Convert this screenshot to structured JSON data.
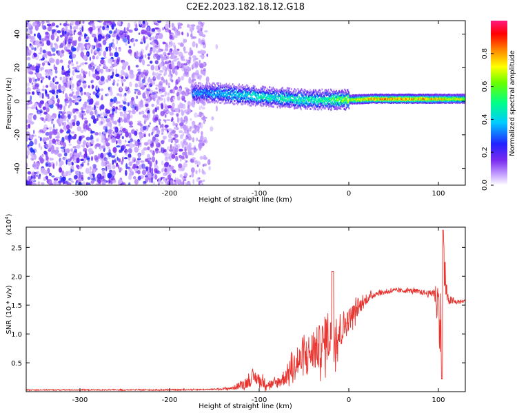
{
  "title": "C2E2.2023.182.18.12.G18",
  "colors": {
    "snr_line": "#e8332e",
    "scatter_purple": "#7b2cf0",
    "frame": "#000000"
  },
  "chart_data": [
    {
      "type": "heatmap",
      "name": "spectrogram",
      "xlabel": "Height of straight line (km)",
      "ylabel": "Frequency (Hz)",
      "xlim": [
        -360,
        130
      ],
      "ylim": [
        -50,
        48
      ],
      "x_ticks": [
        -300,
        -200,
        -100,
        0,
        100
      ],
      "y_ticks": [
        -40,
        -20,
        0,
        20,
        40
      ],
      "colorbar": {
        "label": "Normalized spectral amplitude",
        "range": [
          0.0,
          1.0
        ],
        "ticks": [
          0.0,
          0.2,
          0.4,
          0.6,
          0.8
        ],
        "tick_labels": [
          "0.0",
          "0.2",
          "0.4",
          "0.6",
          "0.8"
        ],
        "colormap": "rainbow"
      },
      "features": {
        "noise_region_x": [
          -360,
          -160
        ],
        "signal_track": {
          "x": [
            -175,
            -150,
            -125,
            -100,
            -75,
            -50,
            -25,
            0,
            25,
            50,
            75,
            100,
            130
          ],
          "y": [
            5,
            5,
            4,
            3,
            2,
            1,
            1,
            1,
            1.5,
            1.5,
            1.5,
            1.5,
            1.5
          ],
          "intensity": [
            0.35,
            0.4,
            0.45,
            0.5,
            0.5,
            0.5,
            0.55,
            0.7,
            0.85,
            0.9,
            0.85,
            0.8,
            0.7
          ]
        }
      }
    },
    {
      "type": "line",
      "name": "snr",
      "xlabel": "Height of straight line (km)",
      "ylabel": "SNR (10 * v/v)",
      "y_multiplier": "(x10",
      "y_multiplier_exp": "4",
      "y_multiplier_close": ")",
      "xlim": [
        -360,
        130
      ],
      "ylim": [
        0,
        2.85
      ],
      "x_ticks": [
        -300,
        -200,
        -100,
        0,
        100
      ],
      "y_ticks": [
        0.5,
        1.0,
        1.5,
        2.0,
        2.5
      ],
      "y_tick_labels": [
        "0.5",
        "1.0",
        "1.5",
        "2.0",
        "2.5"
      ],
      "series": [
        {
          "x": [
            -360,
            -300,
            -200,
            -150,
            -130,
            -115,
            -105,
            -95,
            -85,
            -75,
            -60,
            -45,
            -30,
            -20,
            -15,
            -10,
            0,
            10,
            20,
            30,
            50,
            70,
            90,
            95,
            100,
            103,
            106,
            110,
            120,
            130
          ],
          "y": [
            0.03,
            0.03,
            0.03,
            0.04,
            0.06,
            0.15,
            0.25,
            0.15,
            0.12,
            0.2,
            0.45,
            0.65,
            0.8,
            1.05,
            0.95,
            1.05,
            1.25,
            1.45,
            1.6,
            1.7,
            1.75,
            1.75,
            1.7,
            1.72,
            1.55,
            1.0,
            2.2,
            1.6,
            1.55,
            1.57
          ],
          "noise": [
            0.01,
            0.01,
            0.01,
            0.01,
            0.03,
            0.1,
            0.12,
            0.1,
            0.08,
            0.12,
            0.25,
            0.35,
            0.4,
            0.5,
            0.45,
            0.35,
            0.2,
            0.15,
            0.08,
            0.05,
            0.04,
            0.04,
            0.05,
            0.1,
            0.4,
            0.8,
            0.55,
            0.1,
            0.04,
            0.03
          ]
        }
      ]
    }
  ]
}
